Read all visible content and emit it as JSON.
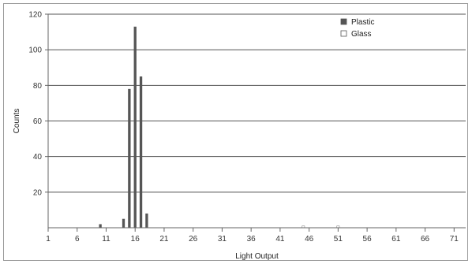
{
  "chart_data": {
    "type": "bar",
    "xlabel": "Light Output",
    "ylabel": "Counts",
    "ylim": [
      0,
      120
    ],
    "yticks": [
      20,
      40,
      60,
      80,
      100,
      120
    ],
    "xlim": [
      1,
      73
    ],
    "xticks": [
      1,
      6,
      11,
      16,
      21,
      26,
      31,
      36,
      41,
      46,
      51,
      56,
      61,
      66,
      71
    ],
    "grid": true,
    "legend_position": "top-right",
    "series": [
      {
        "name": "Plastic",
        "color": "#555555",
        "points": [
          {
            "x": 10,
            "y": 2
          },
          {
            "x": 14,
            "y": 5
          },
          {
            "x": 15,
            "y": 78
          },
          {
            "x": 16,
            "y": 113
          },
          {
            "x": 17,
            "y": 85
          },
          {
            "x": 18,
            "y": 8
          }
        ]
      },
      {
        "name": "Glass",
        "color": "#ffffff",
        "points": [
          {
            "x": 45,
            "y": 1
          },
          {
            "x": 51,
            "y": 1
          }
        ]
      }
    ]
  }
}
